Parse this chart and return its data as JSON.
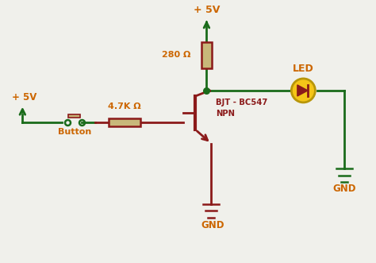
{
  "bg_color": "#f0f0eb",
  "gw": "#1a6b1a",
  "dw": "#8b1a1a",
  "oc": "#cc6600",
  "rc": "#c8b87a",
  "led_fill": "#f5c518",
  "led_edge": "#b8960a",
  "label_5v_top": "+ 5V",
  "label_5v_left": "+ 5V",
  "label_gnd_bot": "GND",
  "label_gnd_right": "GND",
  "label_280": "280 Ω",
  "label_47k": "4.7K Ω",
  "label_bjt": "BJT - BC547",
  "label_npn": "NPN",
  "label_button": "Button",
  "label_led": "LED",
  "xlim": [
    0,
    10
  ],
  "ylim": [
    0,
    7
  ]
}
